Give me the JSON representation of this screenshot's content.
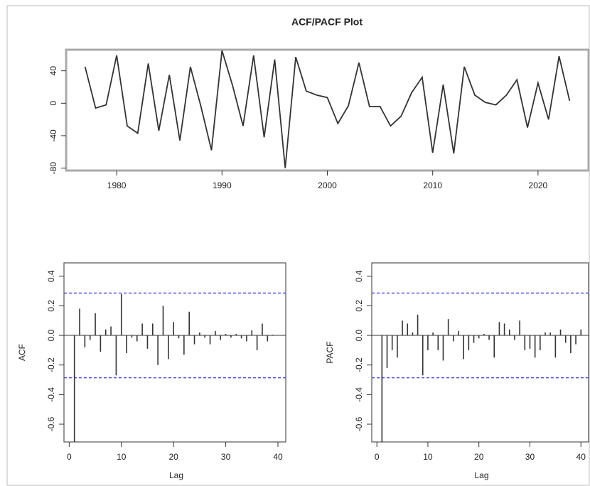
{
  "chart_data": [
    {
      "type": "line",
      "title": "ACF/PACF Plot",
      "color": "#333333",
      "x": [
        1977,
        1978,
        1979,
        1980,
        1981,
        1982,
        1983,
        1984,
        1985,
        1986,
        1987,
        1988,
        1989,
        1990,
        1991,
        1992,
        1993,
        1994,
        1995,
        1996,
        1997,
        1998,
        1999,
        2000,
        2001,
        2002,
        2003,
        2004,
        2005,
        2006,
        2007,
        2008,
        2009,
        2010,
        2011,
        2012,
        2013,
        2014,
        2015,
        2016,
        2017,
        2018,
        2019,
        2020,
        2021,
        2022,
        2023
      ],
      "values": [
        45,
        -6,
        -2,
        59,
        -28,
        -37,
        49,
        -34,
        35,
        -46,
        45,
        -4,
        -58,
        65,
        22,
        -28,
        59,
        -42,
        54,
        -80,
        57,
        15,
        10,
        7,
        -25,
        -3,
        50,
        -4,
        -4,
        -28,
        -16,
        13,
        32,
        -61,
        23,
        -62,
        45,
        10,
        1,
        -2,
        10,
        29,
        -30,
        25,
        -20,
        58,
        3
      ],
      "xlim": [
        1975.2,
        2024.8
      ],
      "ylim": [
        -83,
        66
      ],
      "xticks": [
        1980,
        1990,
        2000,
        2010,
        2020
      ],
      "yticks": [
        -80,
        -40,
        0,
        40
      ]
    },
    {
      "type": "bar",
      "ylabel": "ACF",
      "xlabel": "Lag",
      "color": "#333333",
      "bound_color": "#4b4bff",
      "x": [
        1,
        2,
        3,
        4,
        5,
        6,
        7,
        8,
        9,
        10,
        11,
        12,
        13,
        14,
        15,
        16,
        17,
        18,
        19,
        20,
        21,
        22,
        23,
        24,
        25,
        26,
        27,
        28,
        29,
        30,
        31,
        32,
        33,
        34,
        35,
        36,
        37,
        38,
        39
      ],
      "values": [
        -0.72,
        0.18,
        -0.08,
        -0.03,
        0.15,
        -0.11,
        0.04,
        0.06,
        -0.27,
        0.28,
        -0.12,
        -0.015,
        -0.04,
        0.08,
        -0.09,
        0.08,
        -0.2,
        0.2,
        -0.16,
        0.09,
        -0.02,
        -0.13,
        0.16,
        -0.06,
        0.02,
        -0.015,
        -0.06,
        0.03,
        -0.03,
        0.01,
        -0.015,
        0.01,
        -0.02,
        -0.04,
        0.035,
        -0.1,
        0.08,
        -0.04,
        0.005
      ],
      "confidence_bounds": [
        0.286,
        -0.286
      ],
      "xlim": [
        -1,
        41.5
      ],
      "ylim": [
        -0.72,
        0.49
      ],
      "xticks": [
        0,
        10,
        20,
        30,
        40
      ],
      "yticks": [
        -0.6,
        -0.4,
        -0.2,
        {
          "value": 0,
          "label": "0.0"
        },
        0.2,
        0.4
      ]
    },
    {
      "type": "bar",
      "ylabel": "PACF",
      "xlabel": "Lag",
      "color": "#333333",
      "bound_color": "#4b4bff",
      "x": [
        1,
        2,
        3,
        4,
        5,
        6,
        7,
        8,
        9,
        10,
        11,
        12,
        13,
        14,
        15,
        16,
        17,
        18,
        19,
        20,
        21,
        22,
        23,
        24,
        25,
        26,
        27,
        28,
        29,
        30,
        31,
        32,
        33,
        34,
        35,
        36,
        37,
        38,
        39,
        40
      ],
      "values": [
        -0.72,
        -0.22,
        -0.1,
        -0.15,
        0.1,
        0.08,
        0.02,
        0.14,
        -0.27,
        -0.1,
        0.02,
        -0.1,
        -0.17,
        0.11,
        -0.04,
        0.03,
        -0.16,
        -0.1,
        -0.05,
        -0.02,
        0.01,
        -0.03,
        -0.15,
        0.09,
        0.08,
        0.04,
        -0.03,
        0.1,
        -0.1,
        -0.09,
        -0.15,
        -0.1,
        0.02,
        0.02,
        -0.15,
        0.04,
        -0.05,
        -0.12,
        -0.06,
        0.04
      ],
      "confidence_bounds": [
        0.286,
        -0.286
      ],
      "xlim": [
        -1,
        41.5
      ],
      "ylim": [
        -0.72,
        0.49
      ],
      "xticks": [
        0,
        10,
        20,
        30,
        40
      ],
      "yticks": [
        -0.6,
        -0.4,
        -0.2,
        {
          "value": 0,
          "label": "0.0"
        },
        0.2,
        0.4
      ]
    }
  ]
}
